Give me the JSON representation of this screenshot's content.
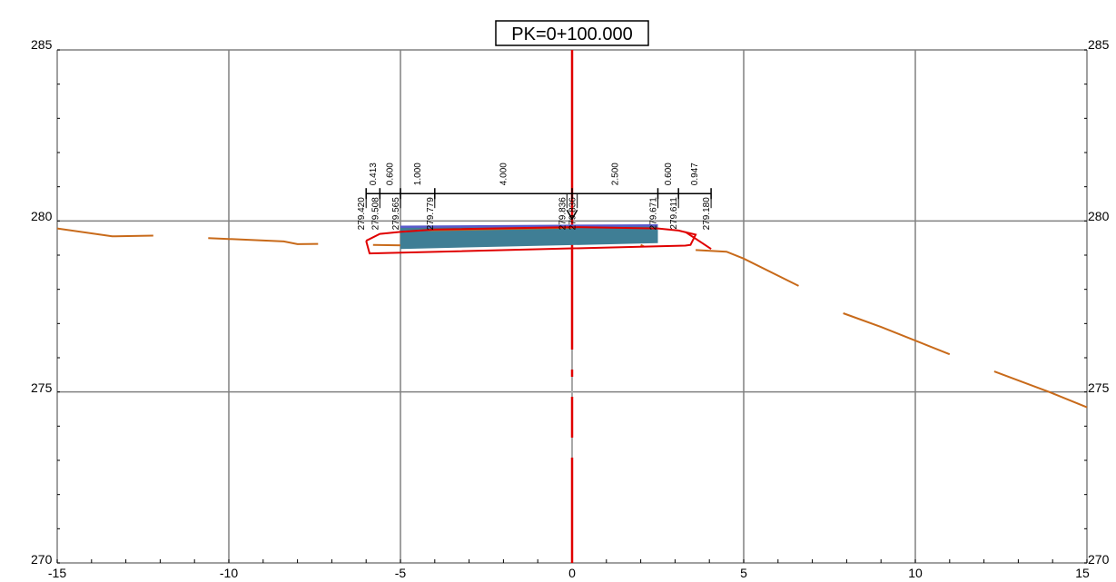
{
  "title": "PK=0+100.000",
  "y_axis_labels": [
    "285",
    "280",
    "275",
    "270"
  ],
  "x_axis_labels": [
    "-15",
    "-10",
    "-5",
    "0",
    "5",
    "10",
    "15"
  ],
  "offset_labels": [
    "0.413",
    "0.600",
    "1.000",
    "4.000",
    "2.500",
    "0.600",
    "0.947"
  ],
  "elevation_labels": [
    "279.420",
    "279.508",
    "279.565",
    "279.779",
    "279.836",
    "279.836",
    "279.671",
    "279.611",
    "279.180"
  ],
  "colors": {
    "grid": "#808080",
    "centerline": "#e00000",
    "terrain": "#c86a1a",
    "subgrade": "#e00000",
    "pavement": "#3f7e95",
    "pavement_top": "#5a5acc",
    "dimension": "#000000"
  },
  "chart_data": {
    "type": "line",
    "title": "PK=0+100.000",
    "xlim": [
      -15,
      15
    ],
    "ylim": [
      270,
      285
    ],
    "x_ticks": [
      -15,
      -10,
      -5,
      0,
      5,
      10,
      15
    ],
    "y_ticks": [
      270,
      275,
      280,
      285
    ],
    "grid": true,
    "centerline_x": 0,
    "dimension_line_y": 280.8,
    "terrain_segments": [
      [
        [
          -15,
          279.78
        ],
        [
          -13.4,
          279.55
        ],
        [
          -12.2,
          279.57
        ]
      ],
      [
        [
          -10.6,
          279.5
        ],
        [
          -8.4,
          279.4
        ],
        [
          -8.0,
          279.32
        ],
        [
          -7.4,
          279.33
        ]
      ],
      [
        [
          -5.8,
          279.3
        ],
        [
          -4.5,
          279.28
        ]
      ],
      [
        [
          2.0,
          279.3
        ],
        [
          2.1,
          279.25
        ]
      ],
      [
        [
          3.6,
          279.15
        ],
        [
          4.5,
          279.1
        ],
        [
          5.0,
          278.9
        ],
        [
          6.6,
          278.1
        ]
      ],
      [
        [
          7.9,
          277.3
        ],
        [
          9.0,
          276.9
        ],
        [
          11.0,
          276.1
        ]
      ],
      [
        [
          12.3,
          275.6
        ],
        [
          13.9,
          275.0
        ],
        [
          15.0,
          274.55
        ]
      ]
    ],
    "subgrade_outline": [
      [
        -6.0,
        279.42
      ],
      [
        -5.6,
        279.62
      ],
      [
        -5.0,
        279.68
      ],
      [
        -4.0,
        279.75
      ],
      [
        0.0,
        279.82
      ],
      [
        2.5,
        279.78
      ],
      [
        3.1,
        279.72
      ],
      [
        3.6,
        279.6
      ],
      [
        3.45,
        279.3
      ],
      [
        3.3,
        279.28
      ],
      [
        -5.9,
        279.05
      ],
      [
        -6.0,
        279.42
      ]
    ],
    "subgrade_right_slope": [
      [
        3.3,
        279.68
      ],
      [
        4.05,
        279.18
      ]
    ],
    "pavement": [
      [
        -5.0,
        279.83
      ],
      [
        2.5,
        279.87
      ],
      [
        2.5,
        279.35
      ],
      [
        -5.0,
        279.18
      ]
    ],
    "pavement_top": [
      [
        -5.0,
        279.83
      ],
      [
        2.5,
        279.87
      ]
    ],
    "pavement_inner_line": [
      [
        -4.2,
        279.72
      ],
      [
        0.1,
        279.8
      ]
    ],
    "dimension_ticks": [
      -6.0,
      -5.6,
      -5.0,
      -4.0,
      0.0,
      2.5,
      3.1,
      4.05
    ],
    "offset_values": [
      {
        "x_mid": -5.8,
        "value": "0.413"
      },
      {
        "x_mid": -5.3,
        "value": "0.600"
      },
      {
        "x_mid": -4.5,
        "value": "1.000"
      },
      {
        "x_mid": -2.0,
        "value": "4.000"
      },
      {
        "x_mid": 1.25,
        "value": "2.500"
      },
      {
        "x_mid": 2.8,
        "value": "0.600"
      },
      {
        "x_mid": 3.57,
        "value": "0.947"
      }
    ],
    "elevation_points": [
      {
        "x": -6.0,
        "value": "279.420"
      },
      {
        "x": -5.6,
        "value": "279.508"
      },
      {
        "x": -5.0,
        "value": "279.565"
      },
      {
        "x": -4.0,
        "value": "279.779"
      },
      {
        "x": -0.15,
        "value": "279.836"
      },
      {
        "x": 0.15,
        "value": "279.836"
      },
      {
        "x": 2.5,
        "value": "279.671"
      },
      {
        "x": 3.1,
        "value": "279.611"
      },
      {
        "x": 4.05,
        "value": "279.180"
      }
    ]
  }
}
